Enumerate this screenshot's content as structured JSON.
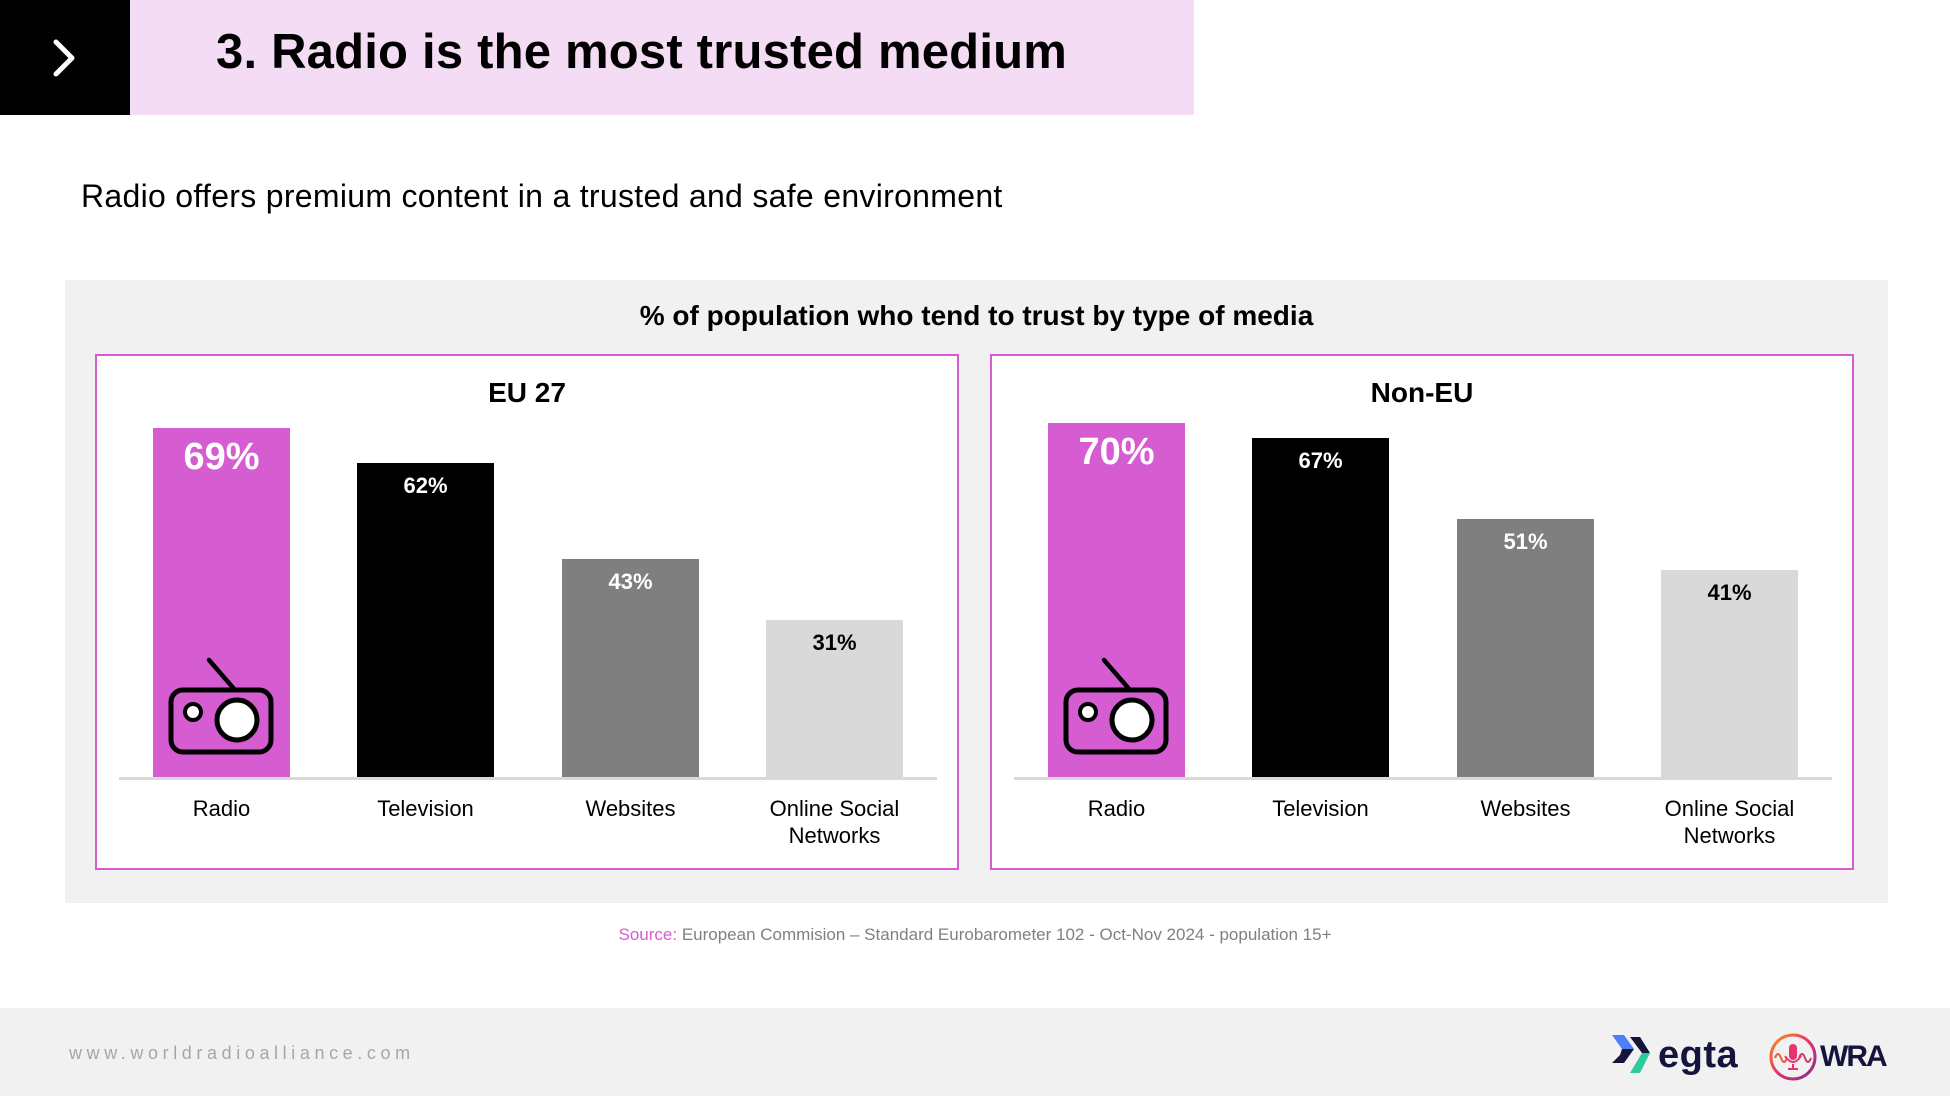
{
  "header": {
    "icon": "chevron-right-icon",
    "title": "3. Radio is the most trusted medium"
  },
  "subtitle": "Radio offers premium content in a trusted and safe environment",
  "colors": {
    "accent": "#d65cd1",
    "header_band": "#f5dcf5",
    "radio": "#d65cd1",
    "television": "#000000",
    "websites": "#7f7f7f",
    "social": "#d9d9d9"
  },
  "chart_data": [
    {
      "type": "bar",
      "title": "EU 27",
      "suptitle": "% of population who tend to trust by type of media",
      "categories": [
        "Radio",
        "Television",
        "Websites",
        "Online Social Networks"
      ],
      "values": [
        69,
        62,
        43,
        31
      ],
      "value_labels": [
        "69%",
        "62%",
        "43%",
        "31%"
      ],
      "unit": "%",
      "xlabel": "",
      "ylabel": "",
      "ylim": [
        0,
        100
      ],
      "grid": false,
      "legend": "none",
      "highlight": "Radio"
    },
    {
      "type": "bar",
      "title": "Non-EU",
      "suptitle": "% of population who tend to trust by type of media",
      "categories": [
        "Radio",
        "Television",
        "Websites",
        "Online Social Networks"
      ],
      "values": [
        70,
        67,
        51,
        41
      ],
      "value_labels": [
        "70%",
        "67%",
        "51%",
        "41%"
      ],
      "unit": "%",
      "xlabel": "",
      "ylabel": "",
      "ylim": [
        0,
        100
      ],
      "grid": false,
      "legend": "none",
      "highlight": "Radio"
    }
  ],
  "chart": {
    "title": "% of population who tend to trust by type of media",
    "panels": [
      {
        "title": "EU 27",
        "bars": [
          {
            "category": "Radio",
            "value": 69,
            "label": "69%",
            "color": "#d65cd1",
            "label_color": "#ffffff",
            "icon": "radio-icon"
          },
          {
            "category": "Television",
            "value": 62,
            "label": "62%",
            "color": "#000000",
            "label_color": "#ffffff"
          },
          {
            "category": "Websites",
            "value": 43,
            "label": "43%",
            "color": "#7f7f7f",
            "label_color": "#ffffff"
          },
          {
            "category": "Online Social\nNetworks",
            "value": 31,
            "label": "31%",
            "color": "#d9d9d9",
            "label_color": "#000000"
          }
        ]
      },
      {
        "title": "Non-EU",
        "bars": [
          {
            "category": "Radio",
            "value": 70,
            "label": "70%",
            "color": "#d65cd1",
            "label_color": "#ffffff",
            "icon": "radio-icon"
          },
          {
            "category": "Television",
            "value": 67,
            "label": "67%",
            "color": "#000000",
            "label_color": "#ffffff"
          },
          {
            "category": "Websites",
            "value": 51,
            "label": "51%",
            "color": "#7f7f7f",
            "label_color": "#ffffff"
          },
          {
            "category": "Online Social\nNetworks",
            "value": 41,
            "label": "41%",
            "color": "#d9d9d9",
            "label_color": "#000000"
          }
        ]
      }
    ]
  },
  "source": {
    "key": "Source:",
    "text": " European Commision – Standard Eurobarometer 102 - Oct-Nov 2024 - population 15+"
  },
  "footer": {
    "url": "www.worldradioalliance.com",
    "logos": [
      {
        "name": "egta",
        "text": "egta",
        "icon": "egta-logo-icon"
      },
      {
        "name": "WRA",
        "text": "WRA",
        "icon": "microphone-icon"
      }
    ]
  }
}
